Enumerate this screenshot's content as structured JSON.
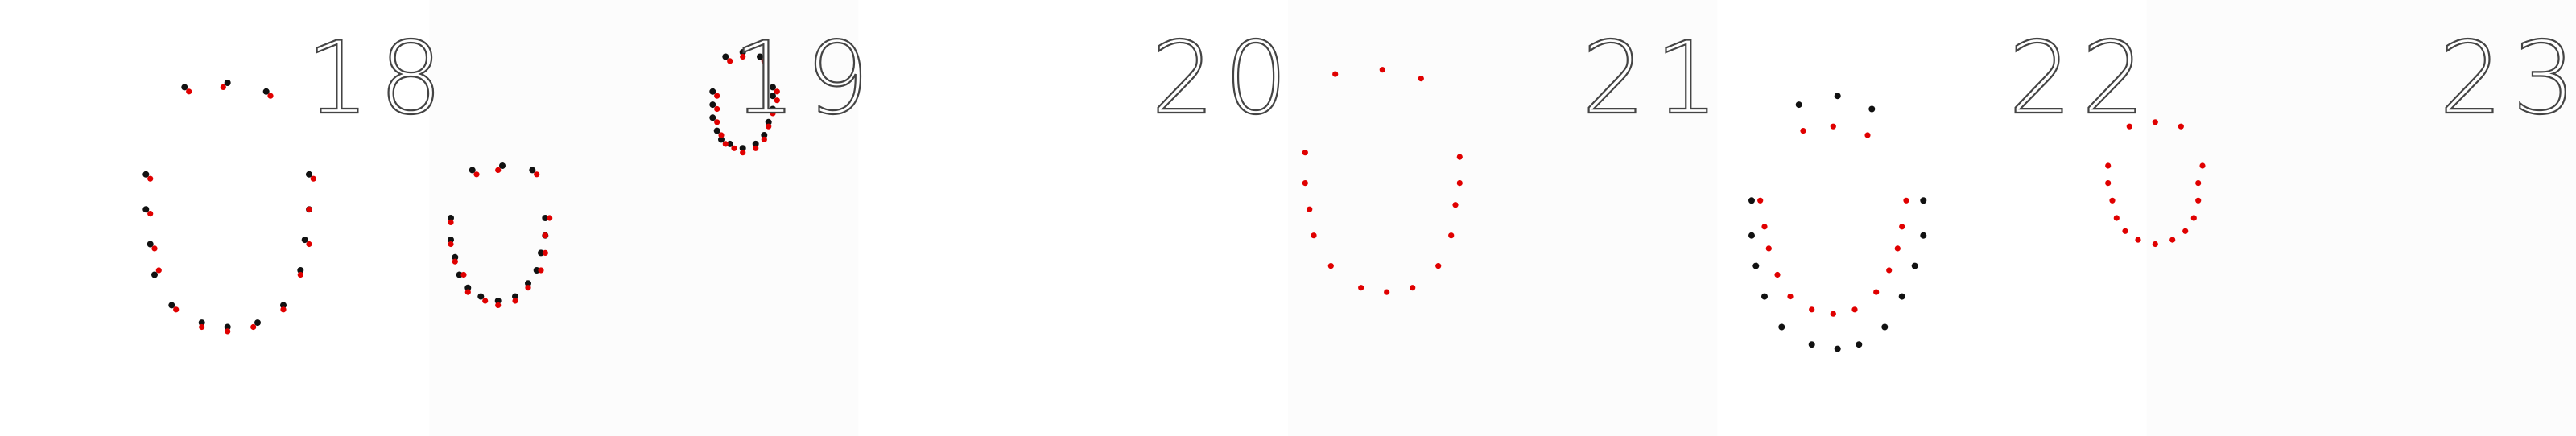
{
  "colors": {
    "background": "#ffffff",
    "ground_truth_points": "#111111",
    "predicted_points": "#e00000",
    "number_outline": "#444444"
  },
  "frames": [
    {
      "label": "18",
      "points": {
        "black": [
          [
            0.43,
            0.2
          ],
          [
            0.53,
            0.19
          ],
          [
            0.62,
            0.21
          ],
          [
            0.34,
            0.4
          ],
          [
            0.34,
            0.48
          ],
          [
            0.35,
            0.56
          ],
          [
            0.36,
            0.63
          ],
          [
            0.4,
            0.7
          ],
          [
            0.47,
            0.74
          ],
          [
            0.53,
            0.75
          ],
          [
            0.6,
            0.74
          ],
          [
            0.66,
            0.7
          ],
          [
            0.7,
            0.62
          ],
          [
            0.71,
            0.55
          ],
          [
            0.72,
            0.48
          ],
          [
            0.72,
            0.4
          ]
        ],
        "red": [
          [
            0.44,
            0.21
          ],
          [
            0.52,
            0.2
          ],
          [
            0.63,
            0.22
          ],
          [
            0.35,
            0.41
          ],
          [
            0.35,
            0.49
          ],
          [
            0.36,
            0.57
          ],
          [
            0.37,
            0.62
          ],
          [
            0.41,
            0.71
          ],
          [
            0.47,
            0.75
          ],
          [
            0.53,
            0.76
          ],
          [
            0.59,
            0.75
          ],
          [
            0.66,
            0.71
          ],
          [
            0.7,
            0.63
          ],
          [
            0.72,
            0.56
          ],
          [
            0.72,
            0.48
          ],
          [
            0.73,
            0.41
          ]
        ]
      }
    },
    {
      "label": "19",
      "points": {
        "black": [
          [
            1.1,
            0.39
          ],
          [
            1.17,
            0.38
          ],
          [
            1.24,
            0.39
          ],
          [
            1.05,
            0.5
          ],
          [
            1.05,
            0.55
          ],
          [
            1.06,
            0.59
          ],
          [
            1.07,
            0.63
          ],
          [
            1.09,
            0.66
          ],
          [
            1.12,
            0.68
          ],
          [
            1.16,
            0.69
          ],
          [
            1.2,
            0.68
          ],
          [
            1.23,
            0.65
          ],
          [
            1.25,
            0.62
          ],
          [
            1.26,
            0.58
          ],
          [
            1.27,
            0.54
          ],
          [
            1.27,
            0.5
          ],
          [
            1.69,
            0.13
          ],
          [
            1.73,
            0.12
          ],
          [
            1.77,
            0.13
          ],
          [
            1.66,
            0.21
          ],
          [
            1.66,
            0.24
          ],
          [
            1.66,
            0.27
          ],
          [
            1.67,
            0.3
          ],
          [
            1.68,
            0.32
          ],
          [
            1.7,
            0.33
          ],
          [
            1.73,
            0.34
          ],
          [
            1.76,
            0.33
          ],
          [
            1.78,
            0.31
          ],
          [
            1.79,
            0.28
          ],
          [
            1.8,
            0.25
          ],
          [
            1.8,
            0.22
          ],
          [
            1.8,
            0.2
          ]
        ],
        "red": [
          [
            1.11,
            0.4
          ],
          [
            1.16,
            0.39
          ],
          [
            1.25,
            0.4
          ],
          [
            1.05,
            0.51
          ],
          [
            1.05,
            0.56
          ],
          [
            1.06,
            0.6
          ],
          [
            1.08,
            0.63
          ],
          [
            1.09,
            0.67
          ],
          [
            1.13,
            0.69
          ],
          [
            1.16,
            0.7
          ],
          [
            1.2,
            0.69
          ],
          [
            1.23,
            0.66
          ],
          [
            1.26,
            0.62
          ],
          [
            1.27,
            0.58
          ],
          [
            1.27,
            0.54
          ],
          [
            1.28,
            0.5
          ],
          [
            1.7,
            0.14
          ],
          [
            1.73,
            0.13
          ],
          [
            1.78,
            0.14
          ],
          [
            1.67,
            0.22
          ],
          [
            1.67,
            0.25
          ],
          [
            1.67,
            0.28
          ],
          [
            1.68,
            0.31
          ],
          [
            1.69,
            0.33
          ],
          [
            1.71,
            0.34
          ],
          [
            1.73,
            0.35
          ],
          [
            1.76,
            0.34
          ],
          [
            1.78,
            0.32
          ],
          [
            1.79,
            0.29
          ],
          [
            1.8,
            0.26
          ],
          [
            1.81,
            0.23
          ],
          [
            1.81,
            0.21
          ]
        ]
      }
    },
    {
      "label": "20",
      "points": {
        "black": [],
        "red": []
      }
    },
    {
      "label": "21",
      "points": {
        "black": [],
        "red": [
          [
            3.11,
            0.17
          ],
          [
            3.22,
            0.16
          ],
          [
            3.31,
            0.18
          ],
          [
            3.04,
            0.35
          ],
          [
            3.04,
            0.42
          ],
          [
            3.05,
            0.48
          ],
          [
            3.06,
            0.54
          ],
          [
            3.1,
            0.61
          ],
          [
            3.17,
            0.66
          ],
          [
            3.23,
            0.67
          ],
          [
            3.29,
            0.66
          ],
          [
            3.35,
            0.61
          ],
          [
            3.38,
            0.54
          ],
          [
            3.39,
            0.47
          ],
          [
            3.4,
            0.42
          ],
          [
            3.4,
            0.36
          ]
        ]
      }
    },
    {
      "label": "22",
      "points": {
        "black": [
          [
            4.19,
            0.24
          ],
          [
            4.28,
            0.22
          ],
          [
            4.36,
            0.25
          ],
          [
            4.08,
            0.46
          ],
          [
            4.08,
            0.54
          ],
          [
            4.09,
            0.61
          ],
          [
            4.11,
            0.68
          ],
          [
            4.15,
            0.75
          ],
          [
            4.22,
            0.79
          ],
          [
            4.28,
            0.8
          ],
          [
            4.33,
            0.79
          ],
          [
            4.39,
            0.75
          ],
          [
            4.43,
            0.68
          ],
          [
            4.46,
            0.61
          ],
          [
            4.48,
            0.54
          ],
          [
            4.48,
            0.46
          ]
        ],
        "red": [
          [
            4.2,
            0.3
          ],
          [
            4.27,
            0.29
          ],
          [
            4.35,
            0.31
          ],
          [
            4.1,
            0.46
          ],
          [
            4.11,
            0.52
          ],
          [
            4.12,
            0.57
          ],
          [
            4.14,
            0.63
          ],
          [
            4.17,
            0.68
          ],
          [
            4.22,
            0.71
          ],
          [
            4.27,
            0.72
          ],
          [
            4.32,
            0.71
          ],
          [
            4.37,
            0.67
          ],
          [
            4.4,
            0.62
          ],
          [
            4.42,
            0.57
          ],
          [
            4.43,
            0.52
          ],
          [
            4.44,
            0.46
          ]
        ]
      }
    },
    {
      "label": "23",
      "points": {
        "black": [],
        "red": [
          [
            4.96,
            0.29
          ],
          [
            5.02,
            0.28
          ],
          [
            5.08,
            0.29
          ],
          [
            4.91,
            0.38
          ],
          [
            4.91,
            0.42
          ],
          [
            4.92,
            0.46
          ],
          [
            4.93,
            0.5
          ],
          [
            4.95,
            0.53
          ],
          [
            4.98,
            0.55
          ],
          [
            5.02,
            0.56
          ],
          [
            5.06,
            0.55
          ],
          [
            5.09,
            0.53
          ],
          [
            5.11,
            0.5
          ],
          [
            5.12,
            0.46
          ],
          [
            5.12,
            0.42
          ],
          [
            5.13,
            0.38
          ]
        ]
      }
    }
  ]
}
